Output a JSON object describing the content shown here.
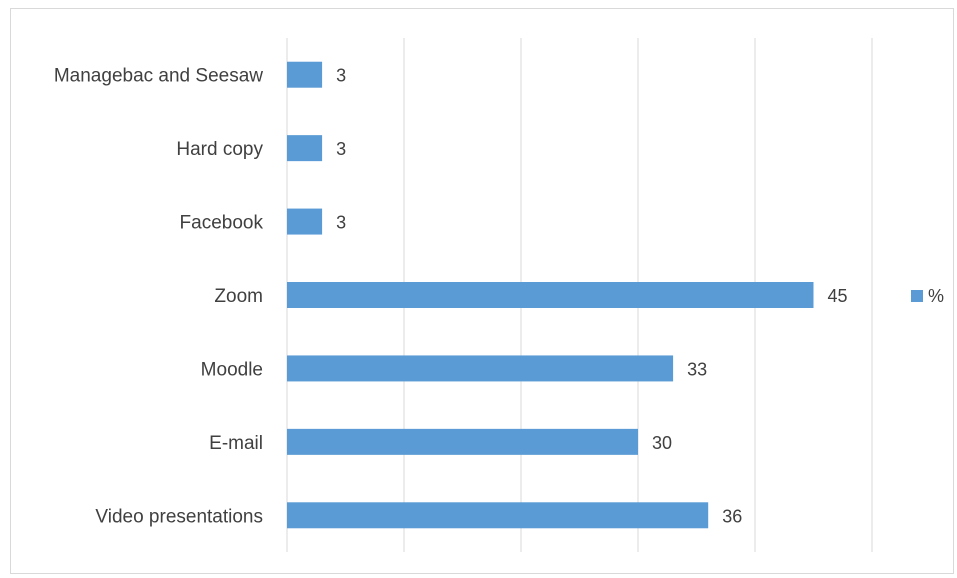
{
  "chart_data": {
    "type": "bar",
    "orientation": "horizontal",
    "categories": [
      "Video presentations",
      "E-mail",
      "Moodle",
      "Zoom",
      "Facebook",
      "Hard copy",
      "Managebac and Seesaw"
    ],
    "series": [
      {
        "name": "%",
        "values": [
          36,
          30,
          33,
          45,
          3,
          3,
          3
        ]
      }
    ],
    "xlim": [
      0,
      50
    ],
    "grid": true,
    "legend": "right",
    "data_labels": true,
    "bar_color": "#5b9bd5"
  }
}
